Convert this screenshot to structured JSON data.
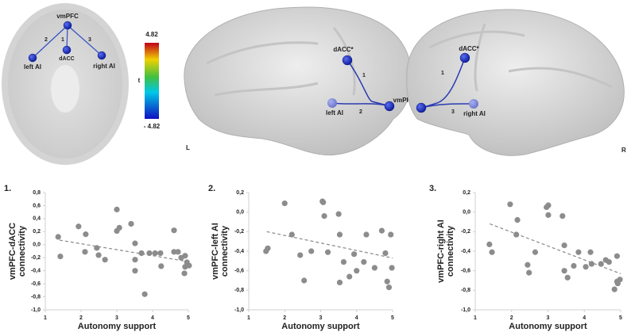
{
  "diagram": {
    "axial": {
      "nodes": [
        "vmPFC",
        "dACC",
        "left AI",
        "right AI"
      ],
      "edges": [
        "1",
        "2",
        "3"
      ]
    },
    "colorbar": {
      "max": "4.82",
      "min": "- 4.82",
      "label": "t"
    },
    "left_hemisphere": {
      "nodes": [
        "dACC*",
        "vmPFC*",
        "left AI"
      ],
      "edges": [
        "1",
        "2"
      ],
      "side": "L"
    },
    "right_hemisphere": {
      "nodes": [
        "dACC*",
        "right AI"
      ],
      "edges": [
        "1",
        "3"
      ],
      "side": "R"
    }
  },
  "chart_data": [
    {
      "type": "scatter",
      "label": "1.",
      "ylabel": [
        "vmPFC-dACC",
        "connectivity"
      ],
      "xlabel": "Autonomy support",
      "color": "#8c8c8c",
      "x": [
        1.36,
        1.42,
        1.93,
        2.13,
        2.11,
        2.44,
        2.49,
        2.67,
        3.0,
        3.0,
        3.07,
        3.4,
        3.51,
        3.51,
        3.51,
        3.69,
        3.78,
        3.91,
        4.07,
        4.22,
        4.24,
        4.6,
        4.6,
        4.71,
        4.8,
        4.89,
        4.91,
        4.96,
        5.02,
        4.91
      ],
      "y": [
        0.12,
        -0.18,
        0.28,
        0.16,
        -0.11,
        -0.05,
        -0.16,
        -0.23,
        0.54,
        0.21,
        0.26,
        0.32,
        0.02,
        -0.23,
        -0.4,
        -0.13,
        -0.76,
        -0.13,
        -0.13,
        -0.13,
        -0.33,
        -0.11,
        0.22,
        -0.11,
        -0.2,
        -0.44,
        -0.17,
        -0.27,
        -0.32,
        -0.34
      ],
      "trendline": {
        "x": [
          1.4,
          5
        ],
        "y": [
          0.07,
          -0.26
        ]
      },
      "xlim": [
        1,
        5
      ],
      "ylim": [
        -1,
        0.8
      ],
      "xticks": [
        1,
        2,
        3,
        4,
        5
      ],
      "yticks": [
        {
          "value": 0.8,
          "label": "0,8"
        },
        {
          "value": 0.6,
          "label": "0,6"
        },
        {
          "value": 0.4,
          "label": "0,4"
        },
        {
          "value": 0.2,
          "label": "0,2"
        },
        {
          "value": 0,
          "label": "0,0"
        },
        {
          "value": -0.2,
          "label": "-0,2"
        },
        {
          "value": -0.4,
          "label": "-0,4"
        },
        {
          "value": -0.6,
          "label": "-0,6"
        },
        {
          "value": -0.8,
          "label": "-0,8"
        },
        {
          "value": -1,
          "label": "-1,0"
        }
      ]
    },
    {
      "type": "scatter",
      "label": "2.",
      "ylabel": [
        "vmPFC-left AI",
        "connectivity"
      ],
      "xlabel": "Autonomy support",
      "color": "#8c8c8c",
      "x": [
        1.48,
        1.53,
        2.0,
        2.2,
        2.43,
        2.54,
        2.74,
        3.05,
        3.07,
        3.1,
        3.2,
        3.5,
        3.53,
        3.53,
        3.64,
        3.8,
        3.93,
        4.0,
        4.2,
        4.27,
        4.5,
        4.7,
        4.8,
        4.85,
        4.9,
        4.95,
        4.98
      ],
      "y": [
        -0.4,
        -0.37,
        0.09,
        -0.23,
        -0.44,
        -0.7,
        -0.4,
        0.11,
        0.1,
        -0.04,
        -0.41,
        -0.02,
        -0.23,
        -0.72,
        -0.51,
        -0.66,
        -0.43,
        -0.6,
        -0.51,
        -0.23,
        -0.57,
        -0.19,
        -0.42,
        -0.71,
        -0.77,
        -0.23,
        -0.57
      ],
      "trendline": {
        "x": [
          1.5,
          5
        ],
        "y": [
          -0.2,
          -0.47
        ]
      },
      "xlim": [
        1,
        5
      ],
      "ylim": [
        -1,
        0.2
      ],
      "xticks": [
        1,
        2,
        3,
        4,
        5
      ],
      "yticks": [
        {
          "value": 0.2,
          "label": "0,2"
        },
        {
          "value": 0,
          "label": "0,0"
        },
        {
          "value": -0.2,
          "label": "-0,2"
        },
        {
          "value": -0.4,
          "label": "-0,4"
        },
        {
          "value": -0.6,
          "label": "-0,6"
        },
        {
          "value": -0.8,
          "label": "-0,8"
        },
        {
          "value": -1,
          "label": "-1,0"
        }
      ]
    },
    {
      "type": "scatter",
      "label": "3.",
      "ylabel": [
        "vmPFC-right AI",
        "connectivity"
      ],
      "xlabel": "Autonomy support",
      "color": "#8c8c8c",
      "x": [
        1.39,
        1.46,
        1.96,
        2.16,
        2.13,
        2.44,
        2.48,
        2.65,
        2.96,
        3.01,
        3.01,
        3.4,
        3.45,
        3.45,
        3.54,
        3.71,
        3.84,
        4.04,
        4.17,
        4.2,
        4.46,
        4.59,
        4.68,
        4.83,
        4.9,
        4.98,
        4.9,
        4.92
      ],
      "y": [
        -0.33,
        -0.41,
        0.08,
        -0.08,
        -0.23,
        -0.54,
        -0.62,
        -0.41,
        0.05,
        0.07,
        -0.03,
        -0.04,
        -0.34,
        -0.6,
        -0.67,
        -0.55,
        -0.41,
        -0.56,
        -0.41,
        -0.53,
        -0.53,
        -0.49,
        -0.51,
        -0.79,
        -0.71,
        -0.69,
        -0.45,
        -0.73
      ],
      "trendline": {
        "x": [
          1.4,
          5
        ],
        "y": [
          -0.12,
          -0.63
        ]
      },
      "xlim": [
        1,
        5
      ],
      "ylim": [
        -1,
        0.2
      ],
      "xticks": [
        1,
        2,
        3,
        4,
        5
      ],
      "yticks": [
        {
          "value": 0.2,
          "label": "0,2"
        },
        {
          "value": 0,
          "label": "0,0"
        },
        {
          "value": -0.2,
          "label": "-0,2"
        },
        {
          "value": -0.4,
          "label": "-0,4"
        },
        {
          "value": -0.6,
          "label": "-0,6"
        },
        {
          "value": -0.8,
          "label": "-0,8"
        },
        {
          "value": -1,
          "label": "-1,0"
        }
      ]
    }
  ]
}
